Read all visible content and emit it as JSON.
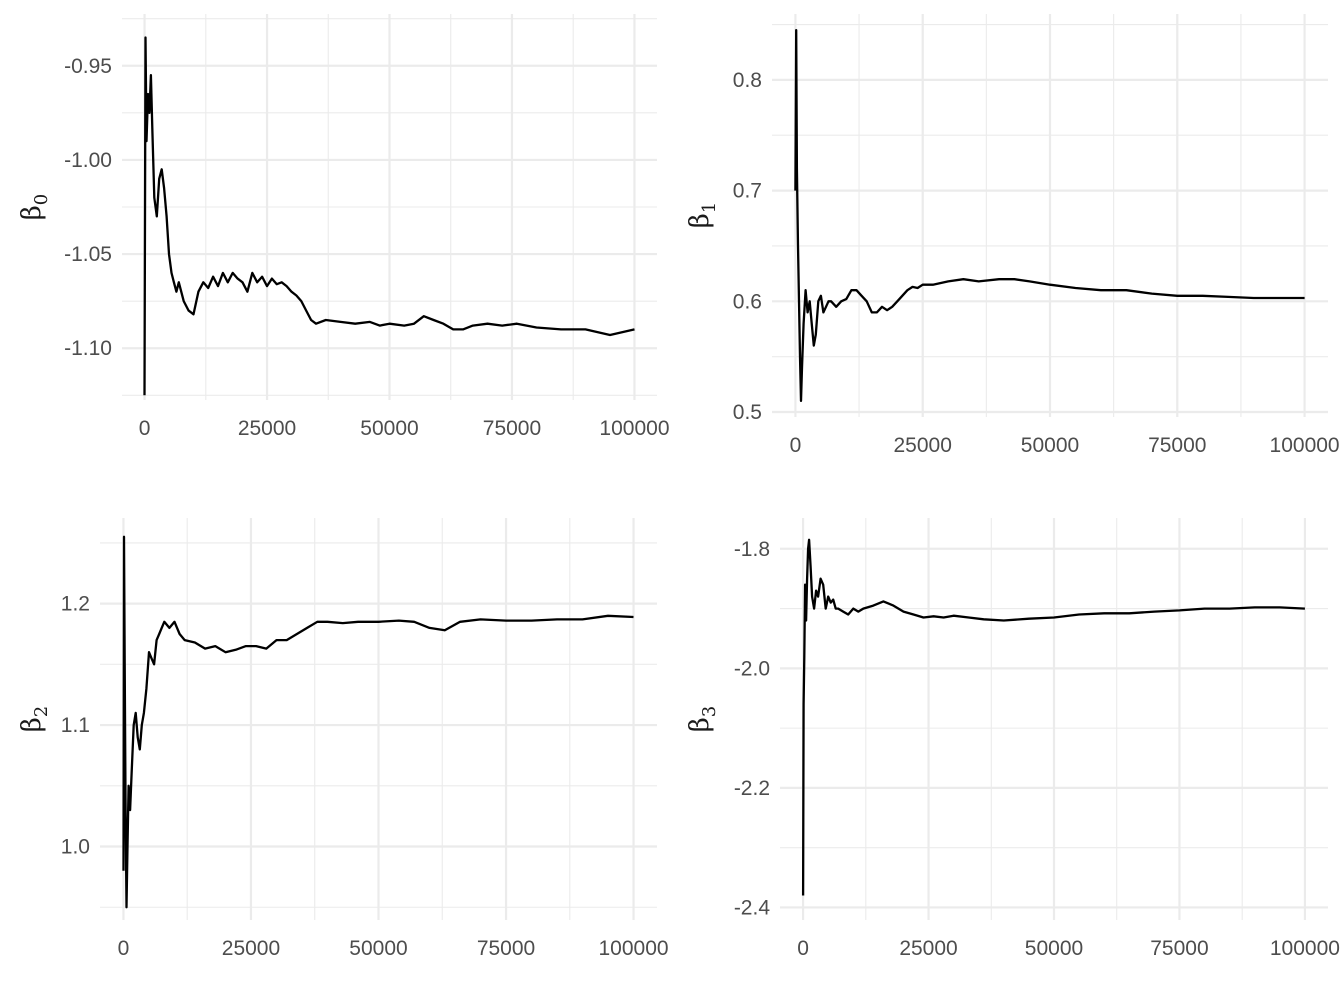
{
  "chart_data": [
    {
      "id": "beta0",
      "type": "line",
      "ylabel": "β",
      "ylabel_sub": "0",
      "x_ticks": [
        0,
        25000,
        50000,
        75000,
        100000
      ],
      "x_tick_labels": [
        "0",
        "25000",
        "50000",
        "75000",
        "100000"
      ],
      "y_ticks": [
        -0.95,
        -1.0,
        -1.05,
        -1.1
      ],
      "y_tick_labels": [
        "-0.95",
        "-1.00",
        "-1.05",
        "-1.10"
      ],
      "xlim": [
        -4600,
        104600
      ],
      "ylim": [
        -1.1275,
        -0.9225
      ],
      "series": [
        {
          "name": "beta0",
          "x": [
            0,
            200,
            400,
            700,
            1000,
            1300,
            1600,
            2000,
            2500,
            3000,
            3500,
            4000,
            4500,
            5000,
            5500,
            6000,
            6500,
            7000,
            8000,
            9000,
            10000,
            11000,
            12000,
            13000,
            14000,
            15000,
            16000,
            17000,
            18000,
            19000,
            20000,
            21000,
            22000,
            23000,
            24000,
            25000,
            26000,
            27000,
            28000,
            29000,
            30000,
            31000,
            32000,
            33000,
            34000,
            35000,
            37000,
            40000,
            43000,
            46000,
            48000,
            50000,
            53000,
            55000,
            57000,
            59000,
            61000,
            63000,
            65000,
            67000,
            70000,
            73000,
            76000,
            80000,
            85000,
            90000,
            95000,
            100000
          ],
          "y": [
            -1.125,
            -0.935,
            -0.99,
            -0.965,
            -0.975,
            -0.955,
            -0.985,
            -1.02,
            -1.03,
            -1.01,
            -1.005,
            -1.015,
            -1.03,
            -1.05,
            -1.06,
            -1.065,
            -1.07,
            -1.065,
            -1.075,
            -1.08,
            -1.082,
            -1.07,
            -1.065,
            -1.068,
            -1.062,
            -1.067,
            -1.06,
            -1.065,
            -1.06,
            -1.063,
            -1.065,
            -1.07,
            -1.06,
            -1.065,
            -1.062,
            -1.067,
            -1.063,
            -1.066,
            -1.065,
            -1.067,
            -1.07,
            -1.072,
            -1.075,
            -1.08,
            -1.085,
            -1.087,
            -1.085,
            -1.086,
            -1.087,
            -1.086,
            -1.088,
            -1.087,
            -1.088,
            -1.087,
            -1.083,
            -1.085,
            -1.087,
            -1.09,
            -1.09,
            -1.088,
            -1.087,
            -1.088,
            -1.087,
            -1.089,
            -1.09,
            -1.09,
            -1.093,
            -1.09
          ]
        }
      ]
    },
    {
      "id": "beta1",
      "type": "line",
      "ylabel": "β",
      "ylabel_sub": "1",
      "x_ticks": [
        0,
        25000,
        50000,
        75000,
        100000
      ],
      "x_tick_labels": [
        "0",
        "25000",
        "50000",
        "75000",
        "100000"
      ],
      "y_ticks": [
        0.5,
        0.6,
        0.7,
        0.8
      ],
      "y_tick_labels": [
        "0.5",
        "0.6",
        "0.7",
        "0.8"
      ],
      "xlim": [
        -4600,
        104600
      ],
      "ylim": [
        0.4955,
        0.8595
      ],
      "series": [
        {
          "name": "beta1",
          "x": [
            0,
            150,
            300,
            500,
            700,
            900,
            1100,
            1300,
            1600,
            2000,
            2400,
            2800,
            3200,
            3600,
            4000,
            4500,
            5000,
            5500,
            6000,
            6500,
            7000,
            8000,
            9000,
            10000,
            11000,
            12000,
            13000,
            14000,
            15000,
            16000,
            17000,
            18000,
            19000,
            20000,
            21000,
            22000,
            23000,
            24000,
            25000,
            27000,
            30000,
            33000,
            36000,
            40000,
            43000,
            46000,
            50000,
            55000,
            60000,
            65000,
            70000,
            75000,
            80000,
            85000,
            90000,
            95000,
            100000
          ],
          "y": [
            0.7,
            0.845,
            0.72,
            0.65,
            0.6,
            0.55,
            0.51,
            0.54,
            0.58,
            0.61,
            0.59,
            0.6,
            0.58,
            0.56,
            0.57,
            0.6,
            0.605,
            0.59,
            0.595,
            0.6,
            0.6,
            0.595,
            0.6,
            0.602,
            0.61,
            0.61,
            0.605,
            0.6,
            0.59,
            0.59,
            0.595,
            0.592,
            0.595,
            0.6,
            0.605,
            0.61,
            0.613,
            0.612,
            0.615,
            0.615,
            0.618,
            0.62,
            0.618,
            0.62,
            0.62,
            0.618,
            0.615,
            0.612,
            0.61,
            0.61,
            0.607,
            0.605,
            0.605,
            0.604,
            0.603,
            0.603,
            0.603
          ]
        }
      ]
    },
    {
      "id": "beta2",
      "type": "line",
      "ylabel": "β",
      "ylabel_sub": "2",
      "x_ticks": [
        0,
        25000,
        50000,
        75000,
        100000
      ],
      "x_tick_labels": [
        "0",
        "25000",
        "50000",
        "75000",
        "100000"
      ],
      "y_ticks": [
        1.0,
        1.1,
        1.2
      ],
      "y_tick_labels": [
        "1.0",
        "1.1",
        "1.2"
      ],
      "xlim": [
        -4600,
        104600
      ],
      "ylim": [
        0.9395,
        1.2705
      ],
      "series": [
        {
          "name": "beta2",
          "x": [
            0,
            100,
            250,
            400,
            600,
            800,
            1000,
            1300,
            1600,
            2000,
            2400,
            2800,
            3200,
            3600,
            4000,
            4500,
            5000,
            5500,
            6000,
            6500,
            7000,
            7500,
            8000,
            9000,
            10000,
            11000,
            12000,
            14000,
            16000,
            18000,
            20000,
            22000,
            24000,
            26000,
            28000,
            30000,
            32000,
            34000,
            36000,
            38000,
            40000,
            43000,
            46000,
            50000,
            54000,
            57000,
            60000,
            63000,
            66000,
            70000,
            75000,
            80000,
            85000,
            90000,
            95000,
            100000
          ],
          "y": [
            0.98,
            1.255,
            1.15,
            1.04,
            0.95,
            1.0,
            1.05,
            1.03,
            1.06,
            1.1,
            1.11,
            1.09,
            1.08,
            1.1,
            1.11,
            1.13,
            1.16,
            1.155,
            1.15,
            1.17,
            1.175,
            1.18,
            1.185,
            1.18,
            1.185,
            1.175,
            1.17,
            1.168,
            1.163,
            1.165,
            1.16,
            1.162,
            1.165,
            1.165,
            1.163,
            1.17,
            1.17,
            1.175,
            1.18,
            1.185,
            1.185,
            1.184,
            1.185,
            1.185,
            1.186,
            1.185,
            1.18,
            1.178,
            1.185,
            1.187,
            1.186,
            1.186,
            1.187,
            1.187,
            1.19,
            1.189
          ]
        }
      ]
    },
    {
      "id": "beta3",
      "type": "line",
      "ylabel": "β",
      "ylabel_sub": "3",
      "x_ticks": [
        0,
        25000,
        50000,
        75000,
        100000
      ],
      "x_tick_labels": [
        "0",
        "25000",
        "50000",
        "75000",
        "100000"
      ],
      "y_ticks": [
        -1.8,
        -2.0,
        -2.2,
        -2.4
      ],
      "y_tick_labels": [
        "-1.8",
        "-2.0",
        "-2.2",
        "-2.4"
      ],
      "xlim": [
        -4600,
        104600
      ],
      "ylim": [
        -2.421,
        -1.7485
      ],
      "series": [
        {
          "name": "beta3",
          "x": [
            0,
            100,
            250,
            400,
            600,
            800,
            1000,
            1200,
            1500,
            1800,
            2200,
            2600,
            3000,
            3500,
            4000,
            4500,
            5000,
            5500,
            6000,
            6500,
            7000,
            8000,
            9000,
            10000,
            11000,
            12000,
            14000,
            16000,
            18000,
            20000,
            22000,
            24000,
            26000,
            28000,
            30000,
            33000,
            36000,
            40000,
            45000,
            50000,
            55000,
            60000,
            65000,
            70000,
            75000,
            80000,
            85000,
            90000,
            95000,
            100000
          ],
          "y": [
            -2.38,
            -2.06,
            -1.98,
            -1.86,
            -1.92,
            -1.85,
            -1.8,
            -1.785,
            -1.83,
            -1.88,
            -1.9,
            -1.87,
            -1.88,
            -1.85,
            -1.86,
            -1.9,
            -1.88,
            -1.89,
            -1.885,
            -1.9,
            -1.9,
            -1.905,
            -1.91,
            -1.9,
            -1.905,
            -1.9,
            -1.895,
            -1.888,
            -1.895,
            -1.905,
            -1.91,
            -1.915,
            -1.913,
            -1.915,
            -1.912,
            -1.915,
            -1.918,
            -1.92,
            -1.917,
            -1.915,
            -1.91,
            -1.908,
            -1.908,
            -1.905,
            -1.903,
            -1.9,
            -1.9,
            -1.898,
            -1.898,
            -1.9
          ]
        }
      ]
    }
  ]
}
